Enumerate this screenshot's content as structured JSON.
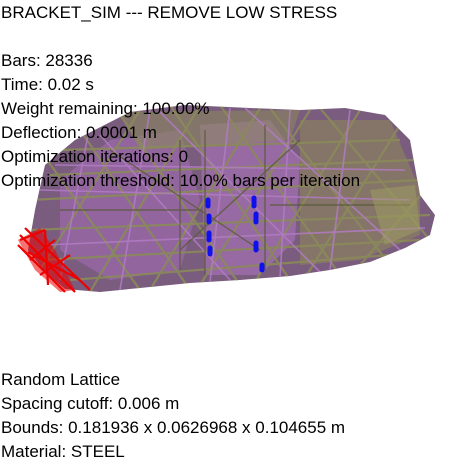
{
  "title": "BRACKET_SIM --- REMOVE LOW STRESS",
  "stats": [
    "Bars: 28336",
    "Time: 0.02 s",
    "Weight remaining: 100.00%",
    "Deflection: 0.0001 m",
    "Optimization iterations: 0",
    "Optimization threshold: 10.0% bars per iteration"
  ],
  "lattice_info": [
    "Random Lattice",
    "Spacing cutoff: 0.006 m",
    "Bounds: 0.181936 x 0.0626968 x 0.104655 m",
    "Material: STEEL"
  ],
  "colors": {
    "body_fill": "#7a5c7e",
    "bar_purple": "#a06ab0",
    "bar_olive": "#8a8a5a",
    "highlight_red": "#ee0000",
    "highlight_blue": "#1010ee"
  }
}
